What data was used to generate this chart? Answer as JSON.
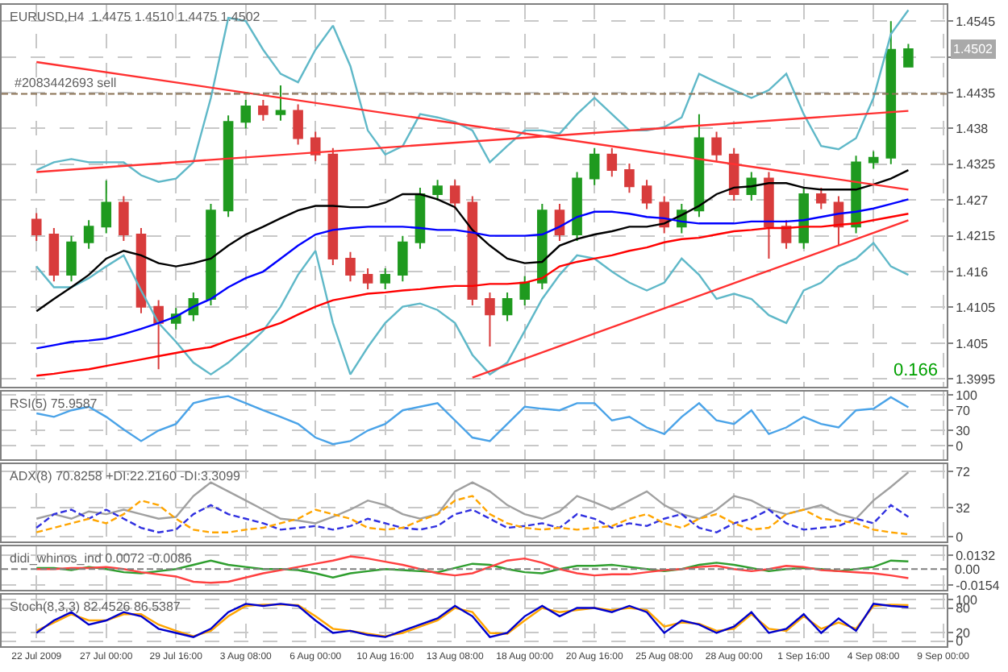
{
  "chart_data": [
    {
      "type": "candlestick",
      "title": "EURUSD,H4  1.4475 1.4510 1.4475 1.4502",
      "categories": [
        null,
        null,
        null,
        null,
        null,
        null,
        null,
        null,
        null,
        null,
        null,
        null,
        null,
        null,
        null,
        null,
        null,
        null,
        null,
        null,
        null,
        null,
        null,
        null,
        null,
        null,
        null,
        null,
        null,
        null,
        null,
        null,
        null,
        null,
        null,
        null,
        null,
        null,
        null,
        null,
        null,
        null,
        null,
        null,
        null,
        null,
        null,
        null,
        null,
        null,
        null,
        null,
        null
      ],
      "ohlc": [
        [
          1.424,
          1.425,
          1.4207,
          1.4217
        ],
        [
          1.4217,
          1.4227,
          1.4145,
          1.4155
        ],
        [
          1.4155,
          1.4215,
          1.4145,
          1.4205
        ],
        [
          1.4205,
          1.4239,
          1.4195,
          1.4229
        ],
        [
          1.4229,
          1.43,
          1.4219,
          1.4266
        ],
        [
          1.4266,
          1.4276,
          1.4207,
          1.4217
        ],
        [
          1.4217,
          1.4227,
          1.4096,
          1.4106
        ],
        [
          1.4106,
          1.4116,
          1.401,
          1.4081
        ],
        [
          1.4081,
          1.4104,
          1.4071,
          1.4094
        ],
        [
          1.4094,
          1.4128,
          1.4084,
          1.4118
        ],
        [
          1.4118,
          1.4264,
          1.4108,
          1.4254
        ],
        [
          1.4254,
          1.44,
          1.4244,
          1.439
        ],
        [
          1.439,
          1.4424,
          1.438,
          1.4414
        ],
        [
          1.4414,
          1.4424,
          1.4392,
          1.4402
        ],
        [
          1.4402,
          1.4446,
          1.4392,
          1.4407
        ],
        [
          1.4407,
          1.4417,
          1.4355,
          1.4365
        ],
        [
          1.4365,
          1.4375,
          1.433,
          1.434
        ],
        [
          1.434,
          1.435,
          1.417,
          1.418
        ],
        [
          1.418,
          1.419,
          1.4145,
          1.4155
        ],
        [
          1.4155,
          1.4165,
          1.4133,
          1.4143
        ],
        [
          1.4143,
          1.4165,
          1.4133,
          1.4155
        ],
        [
          1.4155,
          1.4215,
          1.4145,
          1.4205
        ],
        [
          1.4205,
          1.4289,
          1.4195,
          1.4279
        ],
        [
          1.4279,
          1.4301,
          1.4269,
          1.4291
        ],
        [
          1.4291,
          1.4301,
          1.4256,
          1.4266
        ],
        [
          1.4266,
          1.4276,
          1.4108,
          1.4118
        ],
        [
          1.4118,
          1.4128,
          1.4045,
          1.4094
        ],
        [
          1.4094,
          1.4128,
          1.4084,
          1.4118
        ],
        [
          1.4118,
          1.4153,
          1.4108,
          1.4143
        ],
        [
          1.4143,
          1.4264,
          1.4133,
          1.4254
        ],
        [
          1.4254,
          1.4264,
          1.4207,
          1.4217
        ],
        [
          1.4217,
          1.4313,
          1.4207,
          1.4303
        ],
        [
          1.4303,
          1.435,
          1.4293,
          1.434
        ],
        [
          1.434,
          1.435,
          1.4306,
          1.4316
        ],
        [
          1.4316,
          1.4326,
          1.4281,
          1.4291
        ],
        [
          1.4291,
          1.4301,
          1.4256,
          1.4266
        ],
        [
          1.4266,
          1.4276,
          1.4219,
          1.4229
        ],
        [
          1.4229,
          1.4264,
          1.4219,
          1.4254
        ],
        [
          1.4254,
          1.4402,
          1.4244,
          1.4365
        ],
        [
          1.4365,
          1.4375,
          1.433,
          1.434
        ],
        [
          1.434,
          1.435,
          1.4269,
          1.4279
        ],
        [
          1.4279,
          1.4313,
          1.4269,
          1.4303
        ],
        [
          1.4303,
          1.4313,
          1.418,
          1.4229
        ],
        [
          1.4229,
          1.4239,
          1.4195,
          1.4205
        ],
        [
          1.4205,
          1.4289,
          1.4195,
          1.4279
        ],
        [
          1.4279,
          1.4289,
          1.4256,
          1.4266
        ],
        [
          1.4266,
          1.4276,
          1.42,
          1.4229
        ],
        [
          1.4229,
          1.4338,
          1.4219,
          1.4328
        ],
        [
          1.4328,
          1.4345,
          1.4318,
          1.4335
        ],
        [
          1.4335,
          1.4545,
          1.4325,
          1.4501
        ],
        [
          1.4475,
          1.451,
          1.4475,
          1.4502
        ],
        null,
        null
      ],
      "series": [
        {
          "type": "line",
          "color": "#5fb8c8",
          "values": [
            1.4316,
            1.4328,
            1.4333,
            1.4328,
            1.4328,
            1.4328,
            1.4308,
            1.4298,
            1.4303,
            1.4328,
            1.4427,
            1.455,
            1.4545,
            1.4501,
            1.4464,
            1.4451,
            1.4501,
            1.4538,
            1.4476,
            1.4377,
            1.434,
            1.4353,
            1.4402,
            1.4397,
            1.439,
            1.4377,
            1.4328,
            1.4353,
            1.4377,
            1.4377,
            1.4372,
            1.4402,
            1.4427,
            1.4402,
            1.4377,
            1.4377,
            1.4382,
            1.4397,
            1.4464,
            1.4451,
            1.4439,
            1.4427,
            1.4439,
            1.4464,
            1.4402,
            1.4353,
            1.4348,
            1.4365,
            1.4427,
            1.4525,
            1.4562,
            null,
            null
          ]
        },
        {
          "type": "line",
          "color": "#5fb8c8",
          "values": [
            1.4168,
            1.4136,
            1.4136,
            1.415,
            1.4168,
            1.4185,
            1.4131,
            1.4081,
            1.4052,
            1.402,
            1.4002,
            1.402,
            1.4044,
            1.4069,
            1.4106,
            1.4155,
            1.4192,
            1.4081,
            1.4002,
            1.4044,
            1.4081,
            1.4106,
            1.4111,
            1.4101,
            1.4081,
            1.4032,
            1.4002,
            1.402,
            1.4069,
            1.4118,
            1.4155,
            1.4185,
            1.418,
            1.416,
            1.4143,
            1.4131,
            1.4143,
            1.418,
            1.4155,
            1.4118,
            1.4126,
            1.4118,
            1.4093,
            1.4081,
            1.4131,
            1.4143,
            1.4168,
            1.418,
            1.4204,
            1.4168,
            1.4155,
            null,
            null
          ]
        },
        {
          "type": "line",
          "color": "#000000",
          "values": [
            1.4099,
            1.4118,
            1.4136,
            1.4155,
            1.418,
            1.4192,
            1.4185,
            1.4173,
            1.4168,
            1.4173,
            1.418,
            1.42,
            1.4217,
            1.4229,
            1.4242,
            1.4254,
            1.4261,
            1.4261,
            1.4259,
            1.4259,
            1.4266,
            1.4279,
            1.4279,
            1.4271,
            1.4259,
            1.4224,
            1.42,
            1.418,
            1.4173,
            1.4175,
            1.42,
            1.421,
            1.4217,
            1.4222,
            1.4229,
            1.4229,
            1.4234,
            1.4247,
            1.4261,
            1.4279,
            1.4289,
            1.4291,
            1.4296,
            1.4296,
            1.4289,
            1.4286,
            1.4286,
            1.4286,
            1.4294,
            1.4303,
            1.4316,
            null,
            null
          ]
        },
        {
          "type": "line",
          "color": "#0000ff",
          "values": [
            1.4042,
            1.4047,
            1.4052,
            1.4054,
            1.4057,
            1.4064,
            1.4072,
            1.4081,
            1.4091,
            1.4106,
            1.4118,
            1.4136,
            1.415,
            1.416,
            1.418,
            1.42,
            1.4217,
            1.4224,
            1.4227,
            1.4229,
            1.4229,
            1.4229,
            1.4227,
            1.4224,
            1.4224,
            1.422,
            1.4215,
            1.4215,
            1.4215,
            1.4217,
            1.4229,
            1.4244,
            1.4252,
            1.4252,
            1.4249,
            1.4244,
            1.4242,
            1.4237,
            1.4234,
            1.4234,
            1.4234,
            1.4237,
            1.4237,
            1.4237,
            1.4239,
            1.4244,
            1.4249,
            1.4252,
            1.4257,
            1.4264,
            1.4271,
            null,
            null
          ]
        },
        {
          "type": "line",
          "color": "#ff0000",
          "values": [
            1.4,
            1.4003,
            1.4007,
            1.401,
            1.4015,
            1.402,
            1.4025,
            1.403,
            1.4035,
            1.404,
            1.4044,
            1.4054,
            1.4062,
            1.4072,
            1.4081,
            1.4094,
            1.4106,
            1.4116,
            1.4121,
            1.4126,
            1.4128,
            1.4131,
            1.4133,
            1.4136,
            1.4138,
            1.4138,
            1.4141,
            1.4141,
            1.4143,
            1.415,
            1.4168,
            1.4175,
            1.418,
            1.4185,
            1.4192,
            1.4197,
            1.4205,
            1.421,
            1.4212,
            1.4217,
            1.4222,
            1.4224,
            1.4227,
            1.4227,
            1.4229,
            1.4229,
            1.4232,
            1.4234,
            1.4239,
            1.4244,
            1.4249,
            null,
            null
          ]
        },
        {
          "type": "line",
          "color": "#ff3030",
          "values": [
            1.4482,
            null,
            null,
            null,
            null,
            null,
            null,
            null,
            null,
            null,
            null,
            null,
            null,
            null,
            null,
            null,
            null,
            null,
            null,
            null,
            null,
            null,
            null,
            null,
            null,
            null,
            null,
            null,
            null,
            null,
            null,
            null,
            null,
            null,
            null,
            null,
            null,
            null,
            null,
            null,
            null,
            null,
            null,
            null,
            null,
            null,
            null,
            null,
            null,
            null,
            1.4286,
            null,
            null
          ]
        },
        {
          "type": "line",
          "color": "#ff3030",
          "values": [
            1.4313,
            null,
            null,
            null,
            null,
            null,
            null,
            null,
            null,
            null,
            null,
            null,
            null,
            null,
            null,
            null,
            null,
            null,
            null,
            null,
            null,
            null,
            null,
            null,
            null,
            null,
            null,
            null,
            null,
            null,
            null,
            null,
            null,
            null,
            null,
            null,
            null,
            null,
            null,
            null,
            null,
            null,
            null,
            null,
            null,
            null,
            null,
            null,
            null,
            null,
            1.4407,
            null,
            null
          ]
        },
        {
          "type": "line",
          "color": "#ff3030",
          "values": [
            null,
            null,
            null,
            null,
            null,
            null,
            null,
            null,
            null,
            null,
            null,
            null,
            null,
            null,
            null,
            null,
            null,
            null,
            null,
            null,
            null,
            null,
            null,
            null,
            null,
            1.3997,
            null,
            null,
            null,
            null,
            null,
            null,
            null,
            null,
            null,
            null,
            null,
            null,
            null,
            null,
            null,
            null,
            null,
            null,
            null,
            null,
            null,
            null,
            null,
            null,
            1.4239,
            null,
            null
          ]
        }
      ],
      "ref_lines": [
        {
          "axis": "y",
          "value": 1.4433,
          "label": "#2083442693 sell",
          "color": "#8b7355",
          "line_style": "dashed"
        }
      ],
      "annotations": [
        "0.166",
        {
          "text": "1.4502",
          "y": 1.4502
        }
      ],
      "ylim": [
        1.3983,
        1.457
      ],
      "yticks": [
        1.3995,
        1.405,
        1.4105,
        1.416,
        1.4215,
        1.427,
        1.4325,
        1.438,
        1.4435,
        {
          "value": 1.449,
          "label": null
        },
        1.4545
      ],
      "grid": true,
      "tick_labels": "y"
    },
    {
      "type": "line",
      "title": "RSI(5) 75.9587",
      "categories": [
        null,
        null,
        null,
        null,
        null,
        null,
        null,
        null,
        null,
        null,
        null,
        null,
        null,
        null,
        null,
        null,
        null,
        null,
        null,
        null,
        null,
        null,
        null,
        null,
        null,
        null,
        null,
        null,
        null,
        null,
        null,
        null,
        null,
        null,
        null,
        null,
        null,
        null,
        null,
        null,
        null,
        null,
        null,
        null,
        null,
        null,
        null,
        null,
        null,
        null,
        null,
        null,
        null
      ],
      "series": [
        {
          "color": "#4aa3e8",
          "values": [
            64,
            57,
            70,
            77,
            57,
            32,
            9,
            30,
            43,
            84,
            93,
            98,
            84,
            70,
            57,
            43,
            16,
            3,
            9,
            30,
            43,
            70,
            77,
            84,
            50,
            16,
            9,
            43,
            77,
            73,
            70,
            84,
            84,
            50,
            57,
            36,
            23,
            57,
            84,
            50,
            43,
            70,
            23,
            36,
            57,
            43,
            36,
            70,
            73,
            96,
            76,
            null,
            null
          ]
        }
      ],
      "ylim": [
        -27,
        107
      ],
      "yticks": [
        0,
        30,
        70,
        100
      ],
      "grid": true,
      "tick_labels": "y"
    },
    {
      "type": "line",
      "title": "ADX(8) 70.8258 +DI:22.2160 -DI:3.3099",
      "categories": [
        null,
        null,
        null,
        null,
        null,
        null,
        null,
        null,
        null,
        null,
        null,
        null,
        null,
        null,
        null,
        null,
        null,
        null,
        null,
        null,
        null,
        null,
        null,
        null,
        null,
        null,
        null,
        null,
        null,
        null,
        null,
        null,
        null,
        null,
        null,
        null,
        null,
        null,
        null,
        null,
        null,
        null,
        null,
        null,
        null,
        null,
        null,
        null,
        null,
        null,
        null,
        null,
        null
      ],
      "series": [
        {
          "color": "#a0a0a0",
          "values": [
            20,
            25,
            20,
            28,
            25,
            30,
            25,
            20,
            22,
            45,
            60,
            50,
            40,
            30,
            20,
            18,
            15,
            22,
            30,
            40,
            35,
            25,
            20,
            25,
            50,
            60,
            50,
            35,
            25,
            20,
            28,
            45,
            38,
            30,
            40,
            50,
            35,
            25,
            20,
            30,
            45,
            40,
            30,
            25,
            30,
            35,
            25,
            20,
            40,
            55,
            71,
            null,
            null
          ]
        },
        {
          "color": "#3030e0",
          "line_style": "dashed",
          "values": [
            10,
            25,
            30,
            20,
            30,
            20,
            10,
            5,
            8,
            25,
            35,
            25,
            20,
            15,
            8,
            10,
            12,
            8,
            12,
            20,
            15,
            10,
            8,
            12,
            25,
            30,
            20,
            10,
            12,
            15,
            10,
            25,
            20,
            10,
            15,
            12,
            20,
            25,
            10,
            5,
            15,
            20,
            30,
            15,
            8,
            10,
            12,
            20,
            15,
            35,
            22,
            null,
            null
          ]
        },
        {
          "color": "#ffa500",
          "line_style": "dashed",
          "values": [
            5,
            10,
            15,
            20,
            15,
            25,
            40,
            35,
            20,
            8,
            5,
            5,
            8,
            10,
            15,
            20,
            30,
            25,
            20,
            10,
            8,
            10,
            18,
            25,
            40,
            45,
            25,
            15,
            10,
            8,
            10,
            8,
            10,
            12,
            20,
            25,
            15,
            10,
            20,
            25,
            15,
            8,
            10,
            25,
            30,
            20,
            18,
            15,
            8,
            5,
            3,
            null,
            null
          ]
        }
      ],
      "ylim": [
        -5,
        80
      ],
      "yticks": [
        0,
        32,
        72
      ],
      "grid": true,
      "tick_labels": "y"
    },
    {
      "type": "line",
      "title": "didi_whinos_ind 0.0072 -0.0086",
      "categories": [
        null,
        null,
        null,
        null,
        null,
        null,
        null,
        null,
        null,
        null,
        null,
        null,
        null,
        null,
        null,
        null,
        null,
        null,
        null,
        null,
        null,
        null,
        null,
        null,
        null,
        null,
        null,
        null,
        null,
        null,
        null,
        null,
        null,
        null,
        null,
        null,
        null,
        null,
        null,
        null,
        null,
        null,
        null,
        null,
        null,
        null,
        null,
        null,
        null,
        null,
        null,
        null,
        null
      ],
      "series": [
        {
          "color": "#2e9e2e",
          "values": [
            0.001,
            0.001,
            -0.001,
            0.002,
            0.0,
            -0.003,
            -0.004,
            -0.002,
            0.0,
            0.004,
            0.008,
            0.004,
            0.002,
            0.0,
            0.0,
            -0.001,
            -0.004,
            -0.008,
            -0.004,
            -0.002,
            0.0,
            -0.001,
            -0.002,
            -0.003,
            0.001,
            0.005,
            0.004,
            0.0,
            -0.003,
            -0.004,
            0.0,
            0.003,
            0.003,
            0.004,
            0.002,
            0.0,
            -0.002,
            0.0,
            0.004,
            0.006,
            0.004,
            0.001,
            -0.002,
            0.0,
            0.001,
            0.0,
            -0.002,
            0.0,
            0.002,
            0.008,
            0.0072,
            null,
            null
          ]
        },
        {
          "color": "#ff4040",
          "values": [
            0.0,
            0.0,
            0.001,
            0.001,
            0.002,
            0.0,
            -0.003,
            -0.005,
            -0.007,
            -0.012,
            -0.013,
            -0.012,
            -0.008,
            -0.004,
            -0.001,
            0.002,
            0.005,
            0.008,
            0.012,
            0.01,
            0.007,
            0.004,
            0.0,
            -0.004,
            -0.006,
            -0.004,
            0.002,
            0.008,
            0.01,
            0.006,
            0.0,
            -0.004,
            -0.006,
            -0.005,
            -0.005,
            -0.003,
            -0.001,
            0.0,
            0.002,
            0.003,
            0.0,
            -0.002,
            0.0,
            0.003,
            0.002,
            -0.001,
            -0.002,
            -0.003,
            -0.004,
            -0.006,
            -0.0086,
            null,
            null
          ]
        }
      ],
      "ref_lines": [
        {
          "axis": "y",
          "value": 0,
          "label": "0.00",
          "color": "#808080",
          "line_style": "dashed"
        }
      ],
      "ylim": [
        -0.0196,
        0.0215
      ],
      "yticks": [
        -0.0154,
        0.0132
      ],
      "grid": true,
      "tick_labels": "y"
    },
    {
      "type": "line",
      "title": "Stoch(8,3,3) 82.4526 86.5387",
      "categories": [
        "22 Jul 2009",
        null,
        null,
        null,
        "27 Jul 00:00",
        null,
        null,
        null,
        "29 Jul 16:00",
        null,
        null,
        null,
        "3 Aug 08:00",
        null,
        null,
        null,
        "6 Aug 00:00",
        null,
        null,
        null,
        "10 Aug 16:00",
        null,
        null,
        null,
        "13 Aug 08:00",
        null,
        null,
        null,
        "18 Aug 00:00",
        null,
        null,
        null,
        "20 Aug 16:00",
        null,
        null,
        null,
        "25 Aug 08:00",
        null,
        null,
        null,
        "28 Aug 00:00",
        null,
        null,
        null,
        "1 Sep 16:00",
        null,
        null,
        null,
        "4 Sep 08:00",
        null,
        null,
        null,
        "9 Sep 00:00"
      ],
      "series": [
        {
          "color": "#ffa500",
          "values": [
            25,
            45,
            65,
            50,
            50,
            65,
            65,
            40,
            25,
            12,
            25,
            60,
            85,
            88,
            88,
            87,
            60,
            30,
            25,
            18,
            12,
            20,
            35,
            50,
            80,
            70,
            20,
            18,
            50,
            80,
            70,
            75,
            80,
            75,
            80,
            75,
            35,
            45,
            42,
            25,
            30,
            65,
            30,
            25,
            60,
            30,
            45,
            30,
            85,
            88,
            87,
            null,
            null
          ]
        },
        {
          "color": "#0000cc",
          "values": [
            20,
            50,
            70,
            40,
            50,
            70,
            60,
            30,
            20,
            10,
            30,
            70,
            90,
            85,
            90,
            85,
            50,
            20,
            25,
            15,
            10,
            25,
            40,
            55,
            85,
            60,
            10,
            20,
            60,
            85,
            60,
            80,
            80,
            70,
            85,
            70,
            20,
            50,
            40,
            20,
            35,
            70,
            20,
            30,
            65,
            20,
            55,
            25,
            90,
            85,
            82,
            null,
            null
          ]
        }
      ],
      "ylim": [
        -12,
        112
      ],
      "yticks": [
        0,
        20,
        80,
        100
      ],
      "grid": true
    }
  ]
}
